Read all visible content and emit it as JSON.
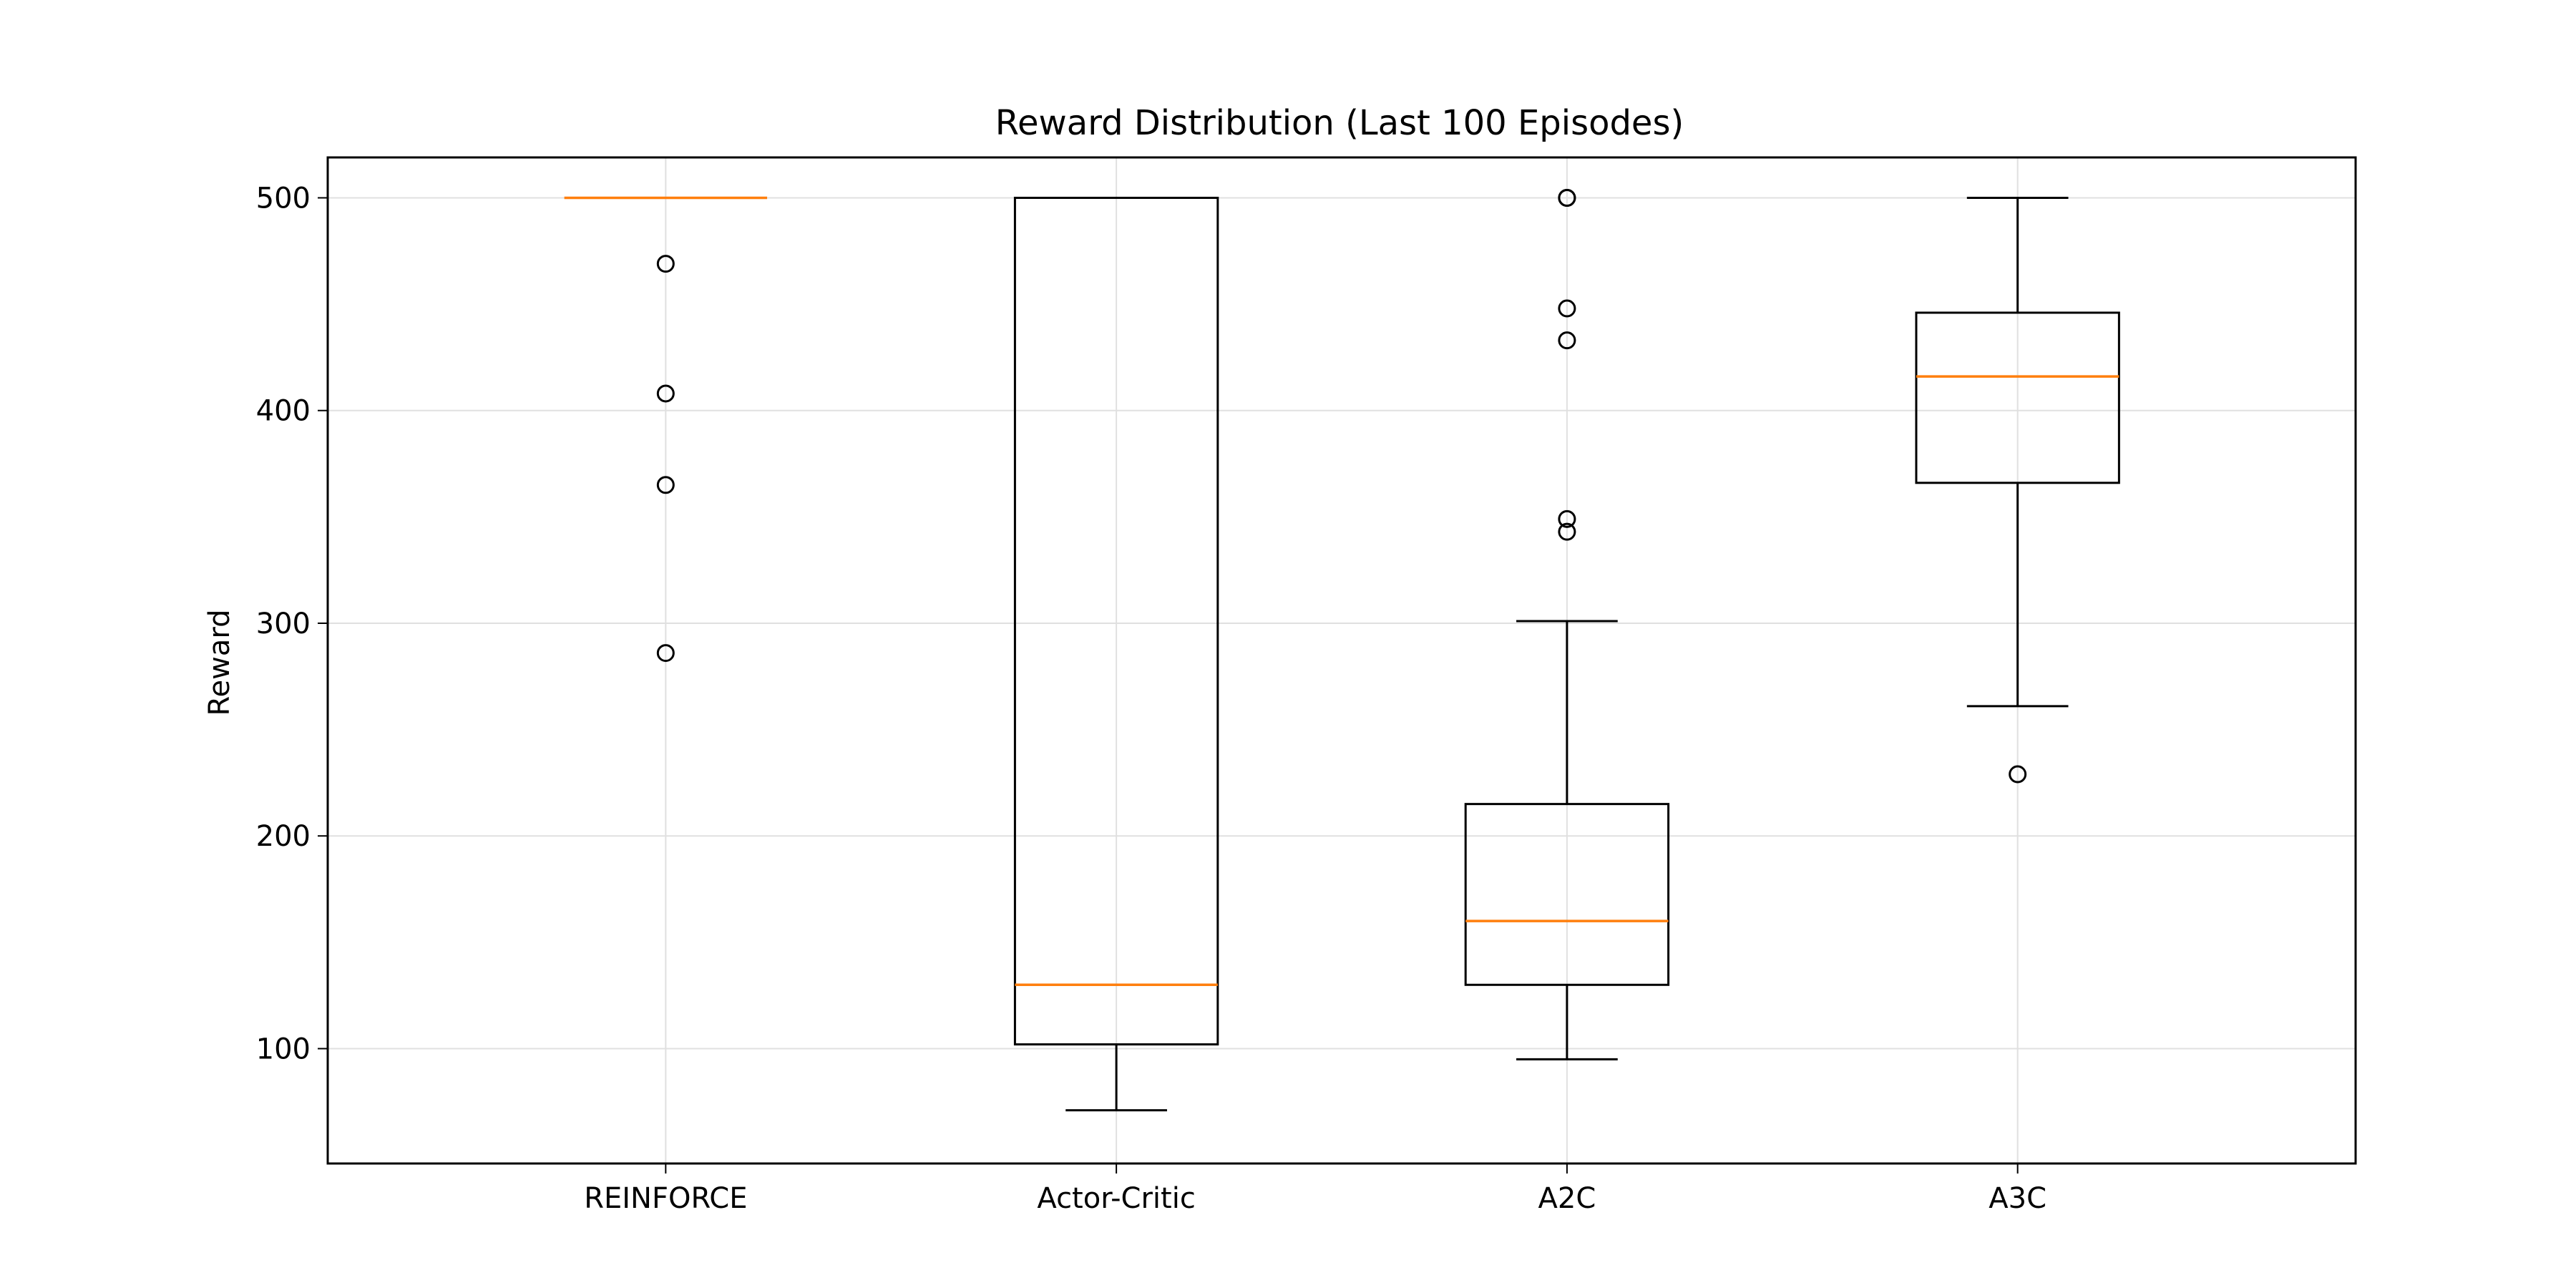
{
  "chart_data": {
    "type": "box",
    "title": "Reward Distribution (Last 100 Episodes)",
    "xlabel": "",
    "ylabel": "Reward",
    "ylim": [
      46,
      519
    ],
    "yticks": [
      100,
      200,
      300,
      400,
      500
    ],
    "grid": true,
    "categories": [
      "REINFORCE",
      "Actor-Critic",
      "A2C",
      "A3C"
    ],
    "boxes": [
      {
        "category": "REINFORCE",
        "whisker_low": 500,
        "q1": 500,
        "median": 500,
        "q3": 500,
        "whisker_high": 500,
        "outliers": [
          469,
          408,
          365,
          286
        ]
      },
      {
        "category": "Actor-Critic",
        "whisker_low": 71,
        "q1": 102,
        "median": 130,
        "q3": 500,
        "whisker_high": 500,
        "outliers": []
      },
      {
        "category": "A2C",
        "whisker_low": 95,
        "q1": 130,
        "median": 160,
        "q3": 215,
        "whisker_high": 301,
        "outliers": [
          500,
          500,
          448,
          433,
          349,
          343
        ]
      },
      {
        "category": "A3C",
        "whisker_low": 261,
        "q1": 366,
        "median": 416,
        "q3": 446,
        "whisker_high": 500,
        "outliers": [
          229
        ]
      }
    ],
    "colors": {
      "box": "#000000",
      "median": "#ff7f0e",
      "grid": "#e0e0e0"
    }
  }
}
